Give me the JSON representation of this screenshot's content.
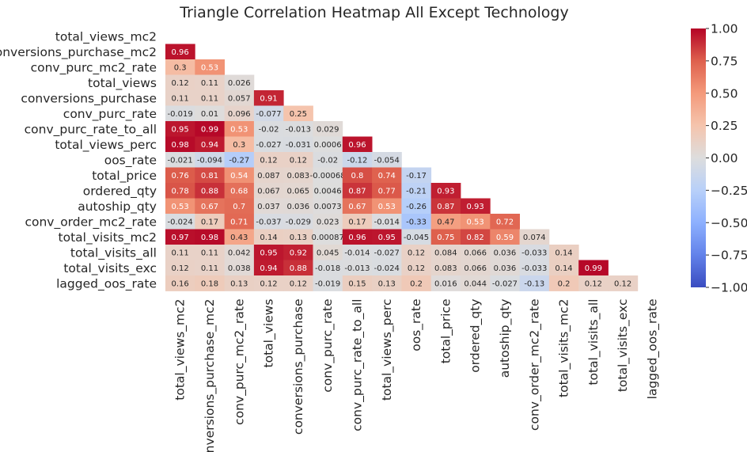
{
  "chart_data": {
    "type": "heatmap",
    "title": "Triangle Correlation Heatmap All Except Technology",
    "variables": [
      "total_views_mc2",
      "conversions_purchase_mc2",
      "conv_purc_mc2_rate",
      "total_views",
      "conversions_purchase",
      "conv_purc_rate",
      "conv_purc_rate_to_all",
      "total_views_perc",
      "oos_rate",
      "total_price",
      "ordered_qty",
      "autoship_qty",
      "conv_order_mc2_rate",
      "total_visits_mc2",
      "total_visits_all",
      "total_visits_exc",
      "lagged_oos_rate"
    ],
    "lower_triangle_values": [
      [],
      [
        "0.96"
      ],
      [
        "0.3",
        "0.53"
      ],
      [
        "0.12",
        "0.11",
        "0.026"
      ],
      [
        "0.11",
        "0.11",
        "0.057",
        "0.91"
      ],
      [
        "-0.019",
        "0.01",
        "0.096",
        "-0.077",
        "0.25"
      ],
      [
        "0.95",
        "0.99",
        "0.53",
        "-0.02",
        "-0.013",
        "0.029"
      ],
      [
        "0.98",
        "0.94",
        "0.3",
        "-0.027",
        "-0.031",
        "0.0006",
        "0.96"
      ],
      [
        "-0.021",
        "-0.094",
        "-0.27",
        "0.12",
        "0.12",
        "-0.02",
        "-0.12",
        "-0.054"
      ],
      [
        "0.76",
        "0.81",
        "0.54",
        "0.087",
        "0.083",
        "-0.00068",
        "0.8",
        "0.74",
        "-0.17"
      ],
      [
        "0.78",
        "0.88",
        "0.68",
        "0.067",
        "0.065",
        "0.0046",
        "0.87",
        "0.77",
        "-0.21",
        "0.93"
      ],
      [
        "0.53",
        "0.67",
        "0.7",
        "0.037",
        "0.036",
        "0.0073",
        "0.67",
        "0.53",
        "-0.26",
        "0.87",
        "0.93"
      ],
      [
        "-0.024",
        "0.17",
        "0.71",
        "-0.037",
        "-0.029",
        "0.023",
        "0.17",
        "-0.014",
        "-0.33",
        "0.47",
        "0.53",
        "0.72"
      ],
      [
        "0.97",
        "0.98",
        "0.43",
        "0.14",
        "0.13",
        "0.00087",
        "0.96",
        "0.95",
        "-0.045",
        "0.75",
        "0.82",
        "0.59",
        "0.074"
      ],
      [
        "0.11",
        "0.11",
        "0.042",
        "0.95",
        "0.92",
        "0.045",
        "-0.014",
        "-0.027",
        "0.12",
        "0.084",
        "0.066",
        "0.036",
        "-0.033",
        "0.14"
      ],
      [
        "0.12",
        "0.11",
        "0.038",
        "0.94",
        "0.88",
        "-0.018",
        "-0.013",
        "-0.024",
        "0.12",
        "0.083",
        "0.066",
        "0.036",
        "-0.033",
        "0.14",
        "0.99"
      ],
      [
        "0.16",
        "0.18",
        "0.13",
        "0.12",
        "0.12",
        "-0.019",
        "0.15",
        "0.13",
        "0.2",
        "0.016",
        "0.044",
        "-0.027",
        "-0.13",
        "0.2",
        "0.12",
        "0.12"
      ]
    ],
    "value_range": [
      -1.0,
      1.0
    ],
    "colormap": "coolwarm",
    "colorbar": {
      "ticks": [
        "1.00",
        "0.75",
        "0.50",
        "0.25",
        "0.00",
        "−0.25",
        "−0.50",
        "−0.75",
        "−1.00"
      ],
      "tick_values": [
        1.0,
        0.75,
        0.5,
        0.25,
        0.0,
        -0.25,
        -0.5,
        -0.75,
        -1.0
      ],
      "placement": "right"
    },
    "mask": "upper-triangle-including-diagonal"
  }
}
